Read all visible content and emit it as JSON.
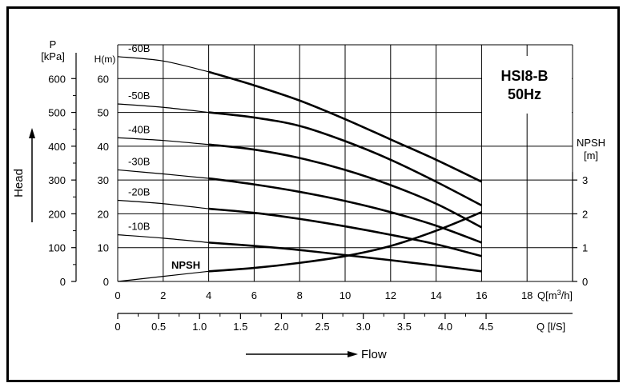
{
  "chart_data": {
    "type": "line",
    "title": "HSI8-B",
    "subtitle": "50Hz",
    "x": {
      "label": "Q[m³/h]",
      "label_main": "Q[m",
      "label_sup": "3",
      "label_end": "/h]",
      "ticks": [
        0,
        2,
        4,
        6,
        8,
        10,
        12,
        14,
        16,
        18
      ],
      "range": [
        0,
        20
      ]
    },
    "x2": {
      "label": "Q [l/S]",
      "tick_labels": [
        "0",
        "0.5",
        "1.0",
        "1.5",
        "2.0",
        "2.5",
        "3.0",
        "3.5",
        "4.0",
        "4.5"
      ],
      "range_ls": [
        0,
        5.556
      ]
    },
    "y_head": {
      "label": "H(m)",
      "ticks": [
        0,
        10,
        20,
        30,
        40,
        50,
        60
      ],
      "range": [
        0,
        70
      ]
    },
    "y_pressure": {
      "label_line1": "P",
      "label_line2": "[kPa]",
      "tick_labels": [
        "0",
        "100",
        "200",
        "300",
        "400",
        "500",
        "600"
      ]
    },
    "y_npsh": {
      "label_line1": "NPSH",
      "label_line2": "[m]",
      "ticks": [
        0,
        1,
        2,
        3
      ],
      "scale_m_per_head_m": 0.1
    },
    "axis_word_head": "Head",
    "axis_word_flow": "Flow",
    "series": [
      {
        "name": "-60B",
        "thin_end": 4,
        "points": [
          [
            0,
            66.5
          ],
          [
            2,
            65.2
          ],
          [
            4,
            62.0
          ],
          [
            6,
            58.0
          ],
          [
            8,
            53.5
          ],
          [
            10,
            48.0
          ],
          [
            12,
            42.0
          ],
          [
            14,
            36.0
          ],
          [
            16,
            29.5
          ]
        ]
      },
      {
        "name": "-50B",
        "thin_end": 4,
        "points": [
          [
            0,
            52.5
          ],
          [
            2,
            51.5
          ],
          [
            4,
            50.0
          ],
          [
            6,
            48.5
          ],
          [
            8,
            46.0
          ],
          [
            10,
            41.5
          ],
          [
            12,
            36.0
          ],
          [
            14,
            29.5
          ],
          [
            16,
            22.5
          ]
        ]
      },
      {
        "name": "-40B",
        "thin_end": 4,
        "points": [
          [
            0,
            42.5
          ],
          [
            2,
            41.7
          ],
          [
            4,
            40.5
          ],
          [
            6,
            39.0
          ],
          [
            8,
            36.5
          ],
          [
            10,
            33.0
          ],
          [
            12,
            28.5
          ],
          [
            14,
            23.0
          ],
          [
            16,
            16.0
          ]
        ]
      },
      {
        "name": "-30B",
        "thin_end": 4,
        "points": [
          [
            0,
            33.0
          ],
          [
            2,
            31.8
          ],
          [
            4,
            30.5
          ],
          [
            6,
            28.7
          ],
          [
            8,
            26.5
          ],
          [
            10,
            23.8
          ],
          [
            12,
            20.5
          ],
          [
            14,
            16.5
          ],
          [
            16,
            11.5
          ]
        ]
      },
      {
        "name": "-20B",
        "thin_end": 4,
        "points": [
          [
            0,
            24.0
          ],
          [
            2,
            23.0
          ],
          [
            4,
            21.5
          ],
          [
            6,
            20.3
          ],
          [
            8,
            18.5
          ],
          [
            10,
            16.3
          ],
          [
            12,
            13.8
          ],
          [
            14,
            11.0
          ],
          [
            16,
            7.5
          ]
        ]
      },
      {
        "name": "-10B",
        "thin_end": 4,
        "points": [
          [
            0,
            13.8
          ],
          [
            2,
            12.8
          ],
          [
            4,
            11.5
          ],
          [
            6,
            10.5
          ],
          [
            8,
            9.3
          ],
          [
            10,
            7.8
          ],
          [
            12,
            6.3
          ],
          [
            14,
            4.7
          ],
          [
            16,
            3.0
          ]
        ]
      },
      {
        "name": "NPSH",
        "axis": "npsh",
        "thin_end": 4,
        "points": [
          [
            0,
            0.0
          ],
          [
            2,
            0.15
          ],
          [
            4,
            0.3
          ],
          [
            6,
            0.4
          ],
          [
            8,
            0.55
          ],
          [
            10,
            0.75
          ],
          [
            12,
            1.05
          ],
          [
            14,
            1.5
          ],
          [
            16,
            2.05
          ]
        ]
      }
    ]
  }
}
